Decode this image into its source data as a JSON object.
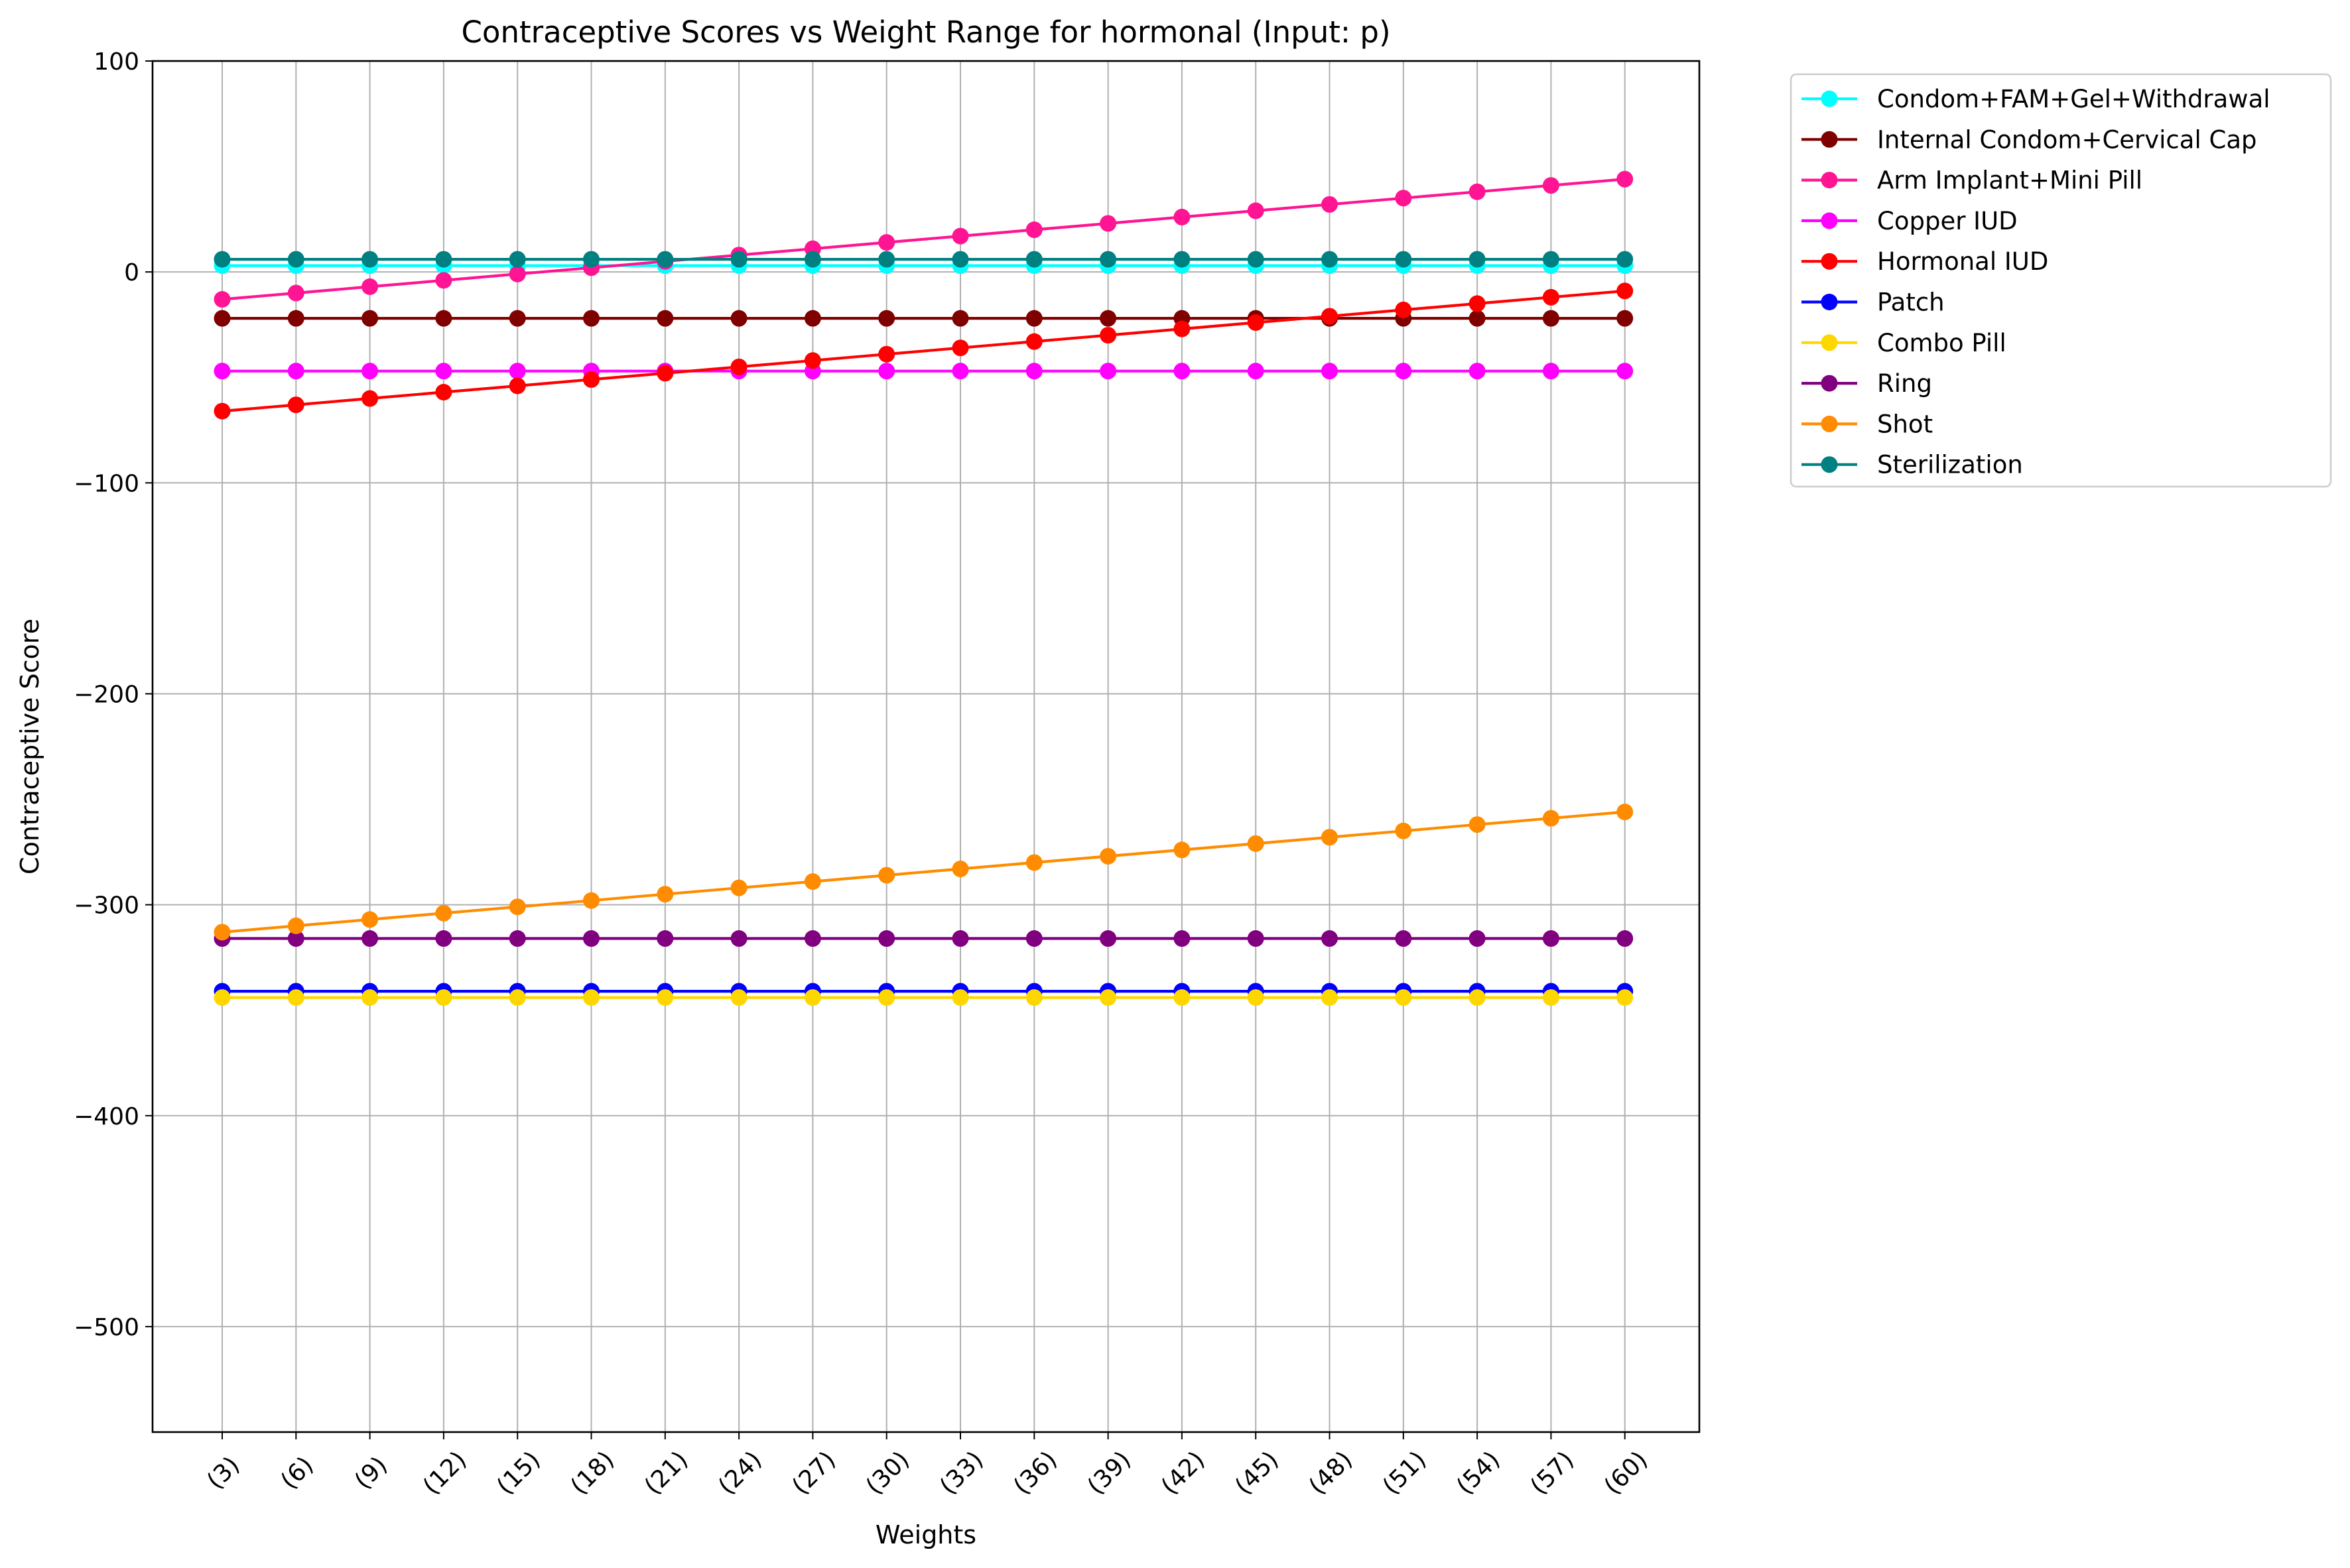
{
  "chart_data": {
    "type": "line",
    "title": "Contraceptive Scores vs Weight Range for hormonal (Input: p)",
    "xlabel": "Weights",
    "ylabel": "Contraceptive Score",
    "ylim": [
      -550,
      100
    ],
    "yticks": [
      100,
      0,
      -100,
      -200,
      -300,
      -400,
      -500
    ],
    "ytick_labels": [
      "100",
      "0",
      "−100",
      "−200",
      "−300",
      "−400",
      "−500"
    ],
    "grid": true,
    "legend_position": "outside-top-right",
    "categories": [
      "(3)",
      "(6)",
      "(9)",
      "(12)",
      "(15)",
      "(18)",
      "(21)",
      "(24)",
      "(27)",
      "(30)",
      "(33)",
      "(36)",
      "(39)",
      "(42)",
      "(45)",
      "(48)",
      "(51)",
      "(54)",
      "(57)",
      "(60)"
    ],
    "series": [
      {
        "name": "Condom+FAM+Gel+Withdrawal",
        "color": "#00ffff",
        "values": [
          3,
          3,
          3,
          3,
          3,
          3,
          3,
          3,
          3,
          3,
          3,
          3,
          3,
          3,
          3,
          3,
          3,
          3,
          3,
          3
        ]
      },
      {
        "name": "Internal Condom+Cervical Cap",
        "color": "#800000",
        "values": [
          -22,
          -22,
          -22,
          -22,
          -22,
          -22,
          -22,
          -22,
          -22,
          -22,
          -22,
          -22,
          -22,
          -22,
          -22,
          -22,
          -22,
          -22,
          -22,
          -22
        ]
      },
      {
        "name": "Arm Implant+Mini Pill",
        "color": "#ff1493",
        "values": [
          -13,
          -10,
          -7,
          -4,
          -1,
          2,
          5,
          8,
          11,
          14,
          17,
          20,
          23,
          26,
          29,
          32,
          35,
          38,
          41,
          44
        ]
      },
      {
        "name": "Copper IUD",
        "color": "#ff00ff",
        "values": [
          -47,
          -47,
          -47,
          -47,
          -47,
          -47,
          -47,
          -47,
          -47,
          -47,
          -47,
          -47,
          -47,
          -47,
          -47,
          -47,
          -47,
          -47,
          -47,
          -47
        ]
      },
      {
        "name": "Hormonal IUD",
        "color": "#ff0000",
        "values": [
          -66,
          -63,
          -60,
          -57,
          -54,
          -51,
          -48,
          -45,
          -42,
          -39,
          -36,
          -33,
          -30,
          -27,
          -24,
          -21,
          -18,
          -15,
          -12,
          -9
        ]
      },
      {
        "name": "Patch",
        "color": "#0000ff",
        "values": [
          -341,
          -341,
          -341,
          -341,
          -341,
          -341,
          -341,
          -341,
          -341,
          -341,
          -341,
          -341,
          -341,
          -341,
          -341,
          -341,
          -341,
          -341,
          -341,
          -341
        ]
      },
      {
        "name": "Combo Pill",
        "color": "#ffd700",
        "values": [
          -344,
          -344,
          -344,
          -344,
          -344,
          -344,
          -344,
          -344,
          -344,
          -344,
          -344,
          -344,
          -344,
          -344,
          -344,
          -344,
          -344,
          -344,
          -344,
          -344
        ]
      },
      {
        "name": "Ring",
        "color": "#800080",
        "values": [
          -316,
          -316,
          -316,
          -316,
          -316,
          -316,
          -316,
          -316,
          -316,
          -316,
          -316,
          -316,
          -316,
          -316,
          -316,
          -316,
          -316,
          -316,
          -316,
          -316
        ]
      },
      {
        "name": "Shot",
        "color": "#ff8c00",
        "values": [
          -313,
          -310,
          -307,
          -304,
          -301,
          -298,
          -295,
          -292,
          -289,
          -286,
          -283,
          -280,
          -277,
          -274,
          -271,
          -268,
          -265,
          -262,
          -259,
          -256
        ]
      },
      {
        "name": "Sterilization",
        "color": "#008080",
        "values": [
          6,
          6,
          6,
          6,
          6,
          6,
          6,
          6,
          6,
          6,
          6,
          6,
          6,
          6,
          6,
          6,
          6,
          6,
          6,
          6
        ]
      }
    ]
  }
}
